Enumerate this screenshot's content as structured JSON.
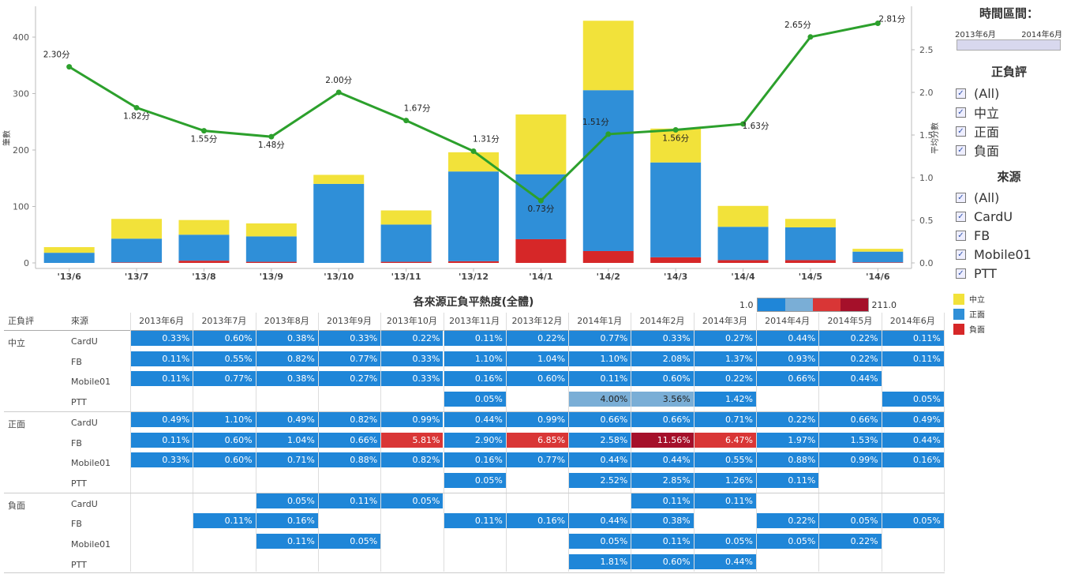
{
  "chart_data": [
    {
      "type": "bar",
      "stacked": true,
      "categories": [
        "'13/6",
        "'13/7",
        "'13/8",
        "'13/9",
        "'13/10",
        "'13/11",
        "'13/12",
        "'14/1",
        "'14/2",
        "'14/3",
        "'14/4",
        "'14/5",
        "'14/6"
      ],
      "ylabel": "筆數",
      "ylabel2": "平均分數",
      "ylim": [
        0,
        440
      ],
      "y2lim": [
        0,
        2.95
      ],
      "yticks": [
        0,
        100,
        200,
        300,
        400
      ],
      "y2ticks": [
        "0.0",
        "0.5",
        "1.0",
        "1.5",
        "2.0",
        "2.5"
      ],
      "series": [
        {
          "name": "負面",
          "color": "#d62728",
          "values": [
            0,
            1,
            4,
            2,
            0,
            2,
            3,
            42,
            21,
            10,
            5,
            5,
            1
          ]
        },
        {
          "name": "正面",
          "color": "#2f8fd8",
          "values": [
            18,
            42,
            46,
            45,
            140,
            66,
            159,
            115,
            285,
            168,
            59,
            58,
            19
          ]
        },
        {
          "name": "中立",
          "color": "#f2e23a",
          "values": [
            10,
            35,
            26,
            23,
            16,
            25,
            34,
            106,
            123,
            60,
            37,
            15,
            5
          ]
        }
      ],
      "line": {
        "color": "#2ca02c",
        "values": [
          2.3,
          1.82,
          1.55,
          1.48,
          2.0,
          1.67,
          1.31,
          0.73,
          1.51,
          1.56,
          1.63,
          2.65,
          2.81
        ],
        "labels": [
          "2.30分",
          "1.82分",
          "1.55分",
          "1.48分",
          "2.00分",
          "1.67分",
          "1.31分",
          "0.73分",
          "1.51分",
          "1.56分",
          "1.63分",
          "2.65分",
          "2.81分"
        ]
      }
    },
    {
      "type": "heatmap",
      "title": "各來源正負平熱度(全體)",
      "scale_min": "1.0",
      "scale_max": "211.0",
      "row_headers": [
        "正負評",
        "來源"
      ],
      "columns": [
        "2013年6月",
        "2013年7月",
        "2013年8月",
        "2013年9月",
        "2013年10月",
        "2013年11月",
        "2013年12月",
        "2014年1月",
        "2014年2月",
        "2014年3月",
        "2014年4月",
        "2014年5月",
        "2014年6月"
      ],
      "groups": [
        {
          "name": "中立",
          "rows": [
            {
              "source": "CardU",
              "values": [
                "0.33%",
                "0.60%",
                "0.38%",
                "0.33%",
                "0.22%",
                "0.11%",
                "0.22%",
                "0.77%",
                "0.33%",
                "0.27%",
                "0.44%",
                "0.22%",
                "0.11%"
              ]
            },
            {
              "source": "FB",
              "values": [
                "0.11%",
                "0.55%",
                "0.82%",
                "0.77%",
                "0.33%",
                "1.10%",
                "1.04%",
                "1.10%",
                "2.08%",
                "1.37%",
                "0.93%",
                "0.22%",
                "0.11%"
              ]
            },
            {
              "source": "Mobile01",
              "values": [
                "0.11%",
                "0.77%",
                "0.38%",
                "0.27%",
                "0.33%",
                "0.16%",
                "0.60%",
                "0.11%",
                "0.60%",
                "0.22%",
                "0.66%",
                "0.44%",
                ""
              ]
            },
            {
              "source": "PTT",
              "values": [
                "",
                "",
                "",
                "",
                "",
                "0.05%",
                "",
                "4.00%",
                "3.56%",
                "1.42%",
                "",
                "",
                "0.05%"
              ]
            }
          ]
        },
        {
          "name": "正面",
          "rows": [
            {
              "source": "CardU",
              "values": [
                "0.49%",
                "1.10%",
                "0.49%",
                "0.82%",
                "0.99%",
                "0.44%",
                "0.99%",
                "0.66%",
                "0.66%",
                "0.71%",
                "0.22%",
                "0.66%",
                "0.49%"
              ]
            },
            {
              "source": "FB",
              "values": [
                "0.11%",
                "0.60%",
                "1.04%",
                "0.66%",
                "5.81%",
                "2.90%",
                "6.85%",
                "2.58%",
                "11.56%",
                "6.47%",
                "1.97%",
                "1.53%",
                "0.44%"
              ]
            },
            {
              "source": "Mobile01",
              "values": [
                "0.33%",
                "0.60%",
                "0.71%",
                "0.88%",
                "0.82%",
                "0.16%",
                "0.77%",
                "0.44%",
                "0.44%",
                "0.55%",
                "0.88%",
                "0.99%",
                "0.16%"
              ]
            },
            {
              "source": "PTT",
              "values": [
                "",
                "",
                "",
                "",
                "",
                "0.05%",
                "",
                "2.52%",
                "2.85%",
                "1.26%",
                "0.11%",
                "",
                ""
              ]
            }
          ]
        },
        {
          "name": "負面",
          "rows": [
            {
              "source": "CardU",
              "values": [
                "",
                "",
                "0.05%",
                "0.11%",
                "0.05%",
                "",
                "",
                "",
                "0.11%",
                "0.11%",
                "",
                "",
                ""
              ]
            },
            {
              "source": "FB",
              "values": [
                "",
                "0.11%",
                "0.16%",
                "",
                "",
                "0.11%",
                "0.16%",
                "0.44%",
                "0.38%",
                "",
                "0.22%",
                "0.05%",
                "0.05%"
              ]
            },
            {
              "source": "Mobile01",
              "values": [
                "",
                "",
                "0.11%",
                "0.05%",
                "",
                "",
                "",
                "0.05%",
                "0.11%",
                "0.05%",
                "0.05%",
                "0.22%",
                ""
              ]
            },
            {
              "source": "PTT",
              "values": [
                "",
                "",
                "",
                "",
                "",
                "",
                "",
                "1.81%",
                "0.60%",
                "0.44%",
                "",
                "",
                ""
              ]
            }
          ]
        }
      ]
    }
  ],
  "filters": {
    "time_title": "時間區間：",
    "time_start": "2013年6月",
    "time_end": "2014年6月",
    "sentiment_title": "正負評",
    "sentiment_items": [
      "(All)",
      "中立",
      "正面",
      "負面"
    ],
    "source_title": "來源",
    "source_items": [
      "(All)",
      "CardU",
      "FB",
      "Mobile01",
      "PTT"
    ]
  },
  "legend": {
    "items": [
      {
        "label": "中立",
        "color": "#f2e23a"
      },
      {
        "label": "正面",
        "color": "#2f8fd8"
      },
      {
        "label": "負面",
        "color": "#d62728"
      }
    ]
  },
  "colors": {
    "heat_low": "#1f86d8",
    "heat_mid": "#7aaed6",
    "heat_high": "#d93636",
    "heat_max": "#a5102a"
  }
}
